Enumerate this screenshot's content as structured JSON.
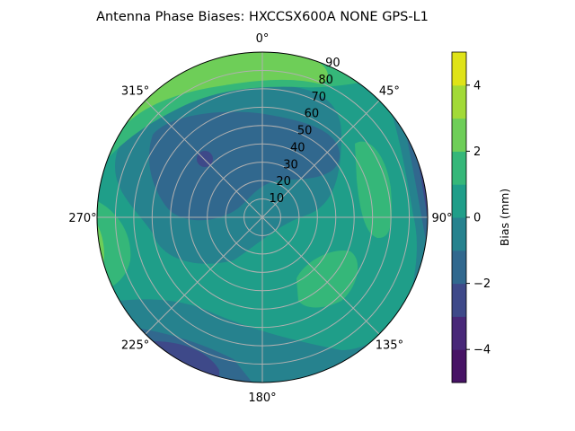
{
  "chart_data": {
    "type": "heatmap",
    "subtype": "polar-filled-contour",
    "title": "Antenna Phase Biases: HXCCSX600A      NONE GPS-L1",
    "angular_tick_labels": [
      "0°",
      "45°",
      "90°",
      "135°",
      "180°",
      "225°",
      "270°",
      "315°"
    ],
    "radial_tick_labels": [
      "10",
      "20",
      "30",
      "40",
      "50",
      "60",
      "70",
      "80",
      "90"
    ],
    "radial_range": [
      0,
      90
    ],
    "grid": true,
    "colorbar": {
      "label": "Bias (mm)",
      "levels": [
        -5,
        -4,
        -3,
        -2,
        -1,
        0,
        1,
        2,
        3,
        4,
        5
      ],
      "tick_labels": [
        "−4",
        "−2",
        "0",
        "2",
        "4"
      ],
      "ticks": [
        -4,
        -2,
        0,
        2,
        4
      ],
      "colormap": "viridis",
      "colors": [
        "#471365",
        "#482878",
        "#3e4989",
        "#31688e",
        "#26828e",
        "#1f9e89",
        "#35b779",
        "#6ece58",
        "#a2da37",
        "#dfe318"
      ],
      "placement": "right"
    }
  }
}
